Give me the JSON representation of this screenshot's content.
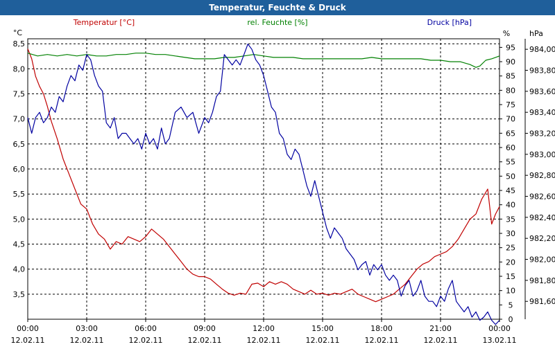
{
  "title": "Temperatur, Feuchte & Druck",
  "chart_data": {
    "type": "line",
    "title": "Temperatur, Feuchte & Druck",
    "x_time_labels": [
      "00:00",
      "03:00",
      "06:00",
      "09:00",
      "12:00",
      "15:00",
      "18:00",
      "21:00",
      "00:00"
    ],
    "x_date_labels": [
      "12.02.11",
      "12.02.11",
      "12.02.11",
      "12.02.11",
      "12.02.11",
      "12.02.11",
      "12.02.11",
      "12.02.11",
      "13.02.11"
    ],
    "xlim": [
      0,
      24
    ],
    "grid": true,
    "axes": {
      "temp": {
        "unit": "°C",
        "ylim": [
          3.0,
          8.6
        ],
        "ticks": [
          "3,5",
          "4,0",
          "4,5",
          "5,0",
          "5,5",
          "6,0",
          "6,5",
          "7,0",
          "7,5",
          "8,0",
          "8,5"
        ],
        "tick_values": [
          3.5,
          4.0,
          4.5,
          5.0,
          5.5,
          6.0,
          6.5,
          7.0,
          7.5,
          8.0,
          8.5
        ]
      },
      "hum": {
        "unit": "%",
        "ylim": [
          0,
          98
        ],
        "ticks": [
          "0",
          "5",
          "10",
          "15",
          "20",
          "25",
          "30",
          "35",
          "40",
          "45",
          "50",
          "55",
          "60",
          "65",
          "70",
          "75",
          "80",
          "85",
          "90",
          "95"
        ],
        "tick_values": [
          0,
          5,
          10,
          15,
          20,
          25,
          30,
          35,
          40,
          45,
          50,
          55,
          60,
          65,
          70,
          75,
          80,
          85,
          90,
          95
        ]
      },
      "press": {
        "unit": "hPa",
        "ylim": [
          981.43,
          984.1
        ],
        "ticks": [
          "981,60",
          "981,80",
          "982,00",
          "982,20",
          "982,40",
          "982,60",
          "982,80",
          "983,00",
          "983,20",
          "983,40",
          "983,60",
          "983,80",
          "984,00"
        ],
        "tick_values": [
          981.6,
          981.8,
          982.0,
          982.2,
          982.4,
          982.6,
          982.8,
          983.0,
          983.2,
          983.4,
          983.6,
          983.8,
          984.0
        ]
      }
    },
    "series": [
      {
        "name": "Temperatur [°C]",
        "axis": "temp",
        "color": "#c00000",
        "x": [
          0,
          0.2,
          0.4,
          0.6,
          0.8,
          1.0,
          1.2,
          1.5,
          1.8,
          2.1,
          2.4,
          2.7,
          3.0,
          3.3,
          3.6,
          3.9,
          4.2,
          4.5,
          4.8,
          5.1,
          5.4,
          5.7,
          6.0,
          6.3,
          6.6,
          6.9,
          7.2,
          7.5,
          7.8,
          8.1,
          8.4,
          8.7,
          9.0,
          9.3,
          9.6,
          9.9,
          10.2,
          10.5,
          10.8,
          11.1,
          11.4,
          11.7,
          12.0,
          12.3,
          12.6,
          12.9,
          13.2,
          13.5,
          13.8,
          14.1,
          14.4,
          14.7,
          15.0,
          15.3,
          15.6,
          15.9,
          16.2,
          16.5,
          16.8,
          17.1,
          17.4,
          17.7,
          18.0,
          18.3,
          18.6,
          18.9,
          19.2,
          19.5,
          19.8,
          20.1,
          20.4,
          20.7,
          21.0,
          21.3,
          21.6,
          21.9,
          22.2,
          22.5,
          22.8,
          23.1,
          23.4,
          23.6,
          23.8,
          24.0
        ],
        "values": [
          8.4,
          8.2,
          7.85,
          7.65,
          7.5,
          7.25,
          6.95,
          6.6,
          6.2,
          5.9,
          5.6,
          5.3,
          5.2,
          4.9,
          4.7,
          4.6,
          4.4,
          4.55,
          4.5,
          4.65,
          4.6,
          4.55,
          4.65,
          4.8,
          4.7,
          4.6,
          4.45,
          4.3,
          4.15,
          4.0,
          3.9,
          3.85,
          3.85,
          3.8,
          3.7,
          3.6,
          3.52,
          3.48,
          3.52,
          3.5,
          3.7,
          3.72,
          3.65,
          3.75,
          3.7,
          3.75,
          3.7,
          3.6,
          3.55,
          3.5,
          3.58,
          3.5,
          3.52,
          3.48,
          3.52,
          3.5,
          3.55,
          3.6,
          3.5,
          3.45,
          3.4,
          3.35,
          3.4,
          3.45,
          3.5,
          3.6,
          3.7,
          3.85,
          4.0,
          4.1,
          4.15,
          4.25,
          4.3,
          4.35,
          4.45,
          4.6,
          4.8,
          5.0,
          5.1,
          5.4,
          5.6,
          4.9,
          5.1,
          5.25
        ]
      },
      {
        "name": "rel. Feuchte [%]",
        "axis": "hum",
        "color": "#008000",
        "x": [
          0,
          0.5,
          1.0,
          1.5,
          2.0,
          2.5,
          3.0,
          3.5,
          4.0,
          4.5,
          5.0,
          5.5,
          6.0,
          6.5,
          7.0,
          7.5,
          8.0,
          8.5,
          9.0,
          9.5,
          10.0,
          10.5,
          11.0,
          11.5,
          12.0,
          12.5,
          13.0,
          13.5,
          14.0,
          14.5,
          15.0,
          15.5,
          16.0,
          16.5,
          17.0,
          17.5,
          18.0,
          18.5,
          19.0,
          19.5,
          20.0,
          20.5,
          21.0,
          21.5,
          22.0,
          22.5,
          22.8,
          23.0,
          23.3,
          23.6,
          23.8,
          24.0
        ],
        "values": [
          93,
          92,
          92.5,
          92,
          92.5,
          92,
          92.5,
          92,
          92,
          92.5,
          92.5,
          93,
          93,
          92.5,
          92.5,
          92,
          91.5,
          91,
          91,
          91,
          91.5,
          91.5,
          92,
          92.5,
          92,
          91.5,
          91.5,
          91.5,
          91,
          91,
          91,
          91,
          91,
          91,
          91,
          91.5,
          91,
          91,
          91,
          91,
          91,
          90.5,
          90.5,
          90,
          90,
          89,
          88,
          88.5,
          90.5,
          91,
          91.5,
          92
        ]
      },
      {
        "name": "Druck [hPa]",
        "axis": "press",
        "color": "#0000a0",
        "x": [
          0,
          0.2,
          0.4,
          0.6,
          0.8,
          1.0,
          1.2,
          1.4,
          1.6,
          1.8,
          2.0,
          2.2,
          2.4,
          2.6,
          2.8,
          3.0,
          3.2,
          3.4,
          3.6,
          3.8,
          4.0,
          4.2,
          4.4,
          4.6,
          4.8,
          5.0,
          5.2,
          5.4,
          5.6,
          5.8,
          6.0,
          6.2,
          6.4,
          6.6,
          6.8,
          7.0,
          7.2,
          7.5,
          7.8,
          8.1,
          8.4,
          8.7,
          9.0,
          9.2,
          9.4,
          9.6,
          9.8,
          10.0,
          10.2,
          10.4,
          10.6,
          10.8,
          11.0,
          11.2,
          11.4,
          11.6,
          11.8,
          12.0,
          12.2,
          12.4,
          12.6,
          12.8,
          13.0,
          13.2,
          13.4,
          13.6,
          13.8,
          14.0,
          14.2,
          14.4,
          14.6,
          14.8,
          15.0,
          15.2,
          15.4,
          15.6,
          15.8,
          16.0,
          16.2,
          16.4,
          16.6,
          16.8,
          17.0,
          17.2,
          17.4,
          17.6,
          17.8,
          18.0,
          18.2,
          18.4,
          18.6,
          18.8,
          19.0,
          19.2,
          19.4,
          19.6,
          19.8,
          20.0,
          20.2,
          20.4,
          20.6,
          20.8,
          21.0,
          21.2,
          21.4,
          21.6,
          21.8,
          22.0,
          22.2,
          22.4,
          22.6,
          22.8,
          23.0,
          23.2,
          23.4,
          23.6,
          23.8,
          24.0
        ],
        "values": [
          983.35,
          983.2,
          983.35,
          983.4,
          983.3,
          983.35,
          983.45,
          983.4,
          983.55,
          983.5,
          983.65,
          983.75,
          983.7,
          983.85,
          983.8,
          983.95,
          983.9,
          983.75,
          983.65,
          983.6,
          983.3,
          983.25,
          983.35,
          983.15,
          983.2,
          983.2,
          983.15,
          983.1,
          983.15,
          983.05,
          983.2,
          983.1,
          983.15,
          983.05,
          983.25,
          983.1,
          983.15,
          983.4,
          983.45,
          983.35,
          983.4,
          983.2,
          983.35,
          983.3,
          983.4,
          983.55,
          983.6,
          983.95,
          983.9,
          983.85,
          983.9,
          983.85,
          983.95,
          984.05,
          984.0,
          983.9,
          983.85,
          983.75,
          983.6,
          983.45,
          983.4,
          983.2,
          983.15,
          983.0,
          982.95,
          983.05,
          983.0,
          982.85,
          982.7,
          982.6,
          982.75,
          982.6,
          982.45,
          982.3,
          982.2,
          982.3,
          982.25,
          982.2,
          982.1,
          982.05,
          982.0,
          981.9,
          981.95,
          981.98,
          981.85,
          981.95,
          981.9,
          981.95,
          981.85,
          981.8,
          981.85,
          981.8,
          981.65,
          981.75,
          981.8,
          981.65,
          981.7,
          981.8,
          981.65,
          981.6,
          981.6,
          981.55,
          981.65,
          981.6,
          981.72,
          981.8,
          981.6,
          981.55,
          981.5,
          981.55,
          981.45,
          981.5,
          981.42,
          981.45,
          981.5,
          981.42,
          981.38,
          981.42
        ]
      }
    ]
  }
}
